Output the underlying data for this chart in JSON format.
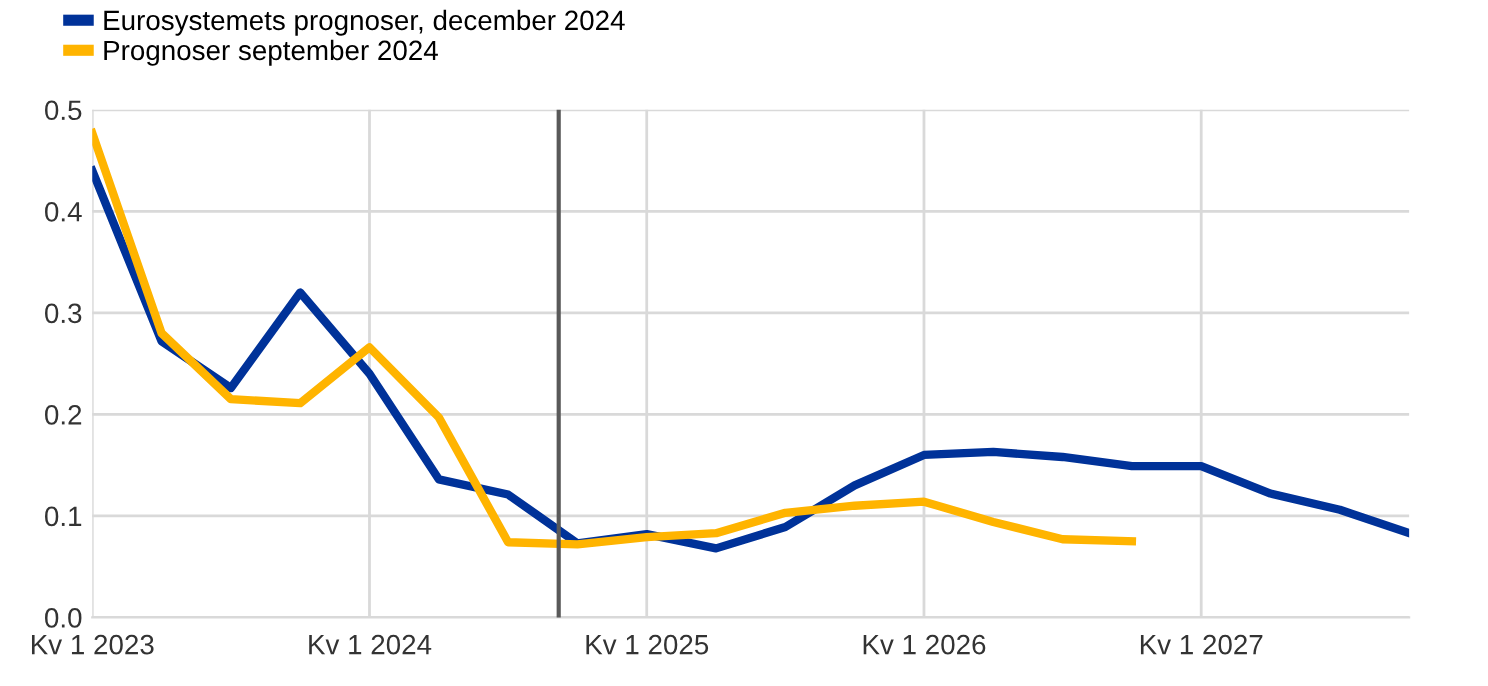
{
  "chart_data": {
    "type": "line",
    "categories": [
      "Kv 1 2023",
      null,
      null,
      null,
      "Kv 1 2024",
      null,
      null,
      null,
      "Kv 1 2025",
      null,
      null,
      null,
      "Kv 1 2026",
      null,
      null,
      null,
      "Kv 1 2027",
      null,
      null,
      null
    ],
    "series": [
      {
        "name": "Eurosystemets prognoser, december 2024",
        "color": "#003299",
        "values": [
          0.44,
          0.272,
          0.226,
          0.32,
          0.24,
          0.136,
          0.121,
          0.073,
          0.082,
          0.068,
          0.089,
          0.13,
          0.16,
          0.163,
          0.158,
          0.149,
          0.149,
          0.122,
          0.106,
          0.083
        ]
      },
      {
        "name": "Prognoser september 2024",
        "color": "#ffb400",
        "values": [
          0.477,
          0.28,
          0.215,
          0.211,
          0.266,
          0.197,
          0.074,
          0.072,
          0.079,
          0.083,
          0.103,
          0.11,
          0.114,
          0.094,
          0.077,
          0.075,
          null,
          null,
          null,
          null
        ]
      }
    ],
    "ylim": [
      0.0,
      0.5
    ],
    "yticks": [
      {
        "value": 0.0,
        "label": "0.0"
      },
      {
        "value": 0.1,
        "label": "0.1"
      },
      {
        "value": 0.2,
        "label": "0.2"
      },
      {
        "value": 0.3,
        "label": "0.3"
      },
      {
        "value": 0.4,
        "label": "0.4"
      },
      {
        "value": 0.5,
        "label": "0.5"
      }
    ],
    "grid": true,
    "legend": "top left",
    "marker": "none",
    "line_style": "solid"
  }
}
